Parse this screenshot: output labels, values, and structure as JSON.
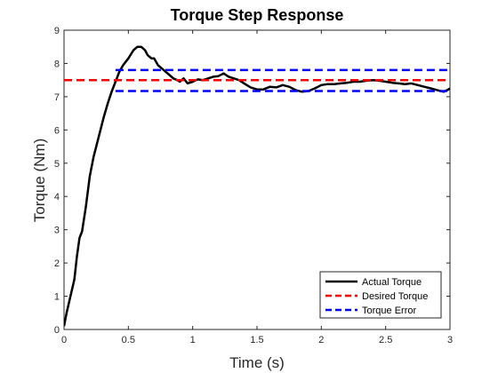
{
  "chart_data": {
    "type": "line",
    "title": "Torque Step Response",
    "xlabel": "Time (s)",
    "ylabel": "Torque (Nm)",
    "xlim": [
      0,
      3
    ],
    "ylim": [
      0,
      9
    ],
    "xticks": [
      0,
      0.5,
      1,
      1.5,
      2,
      2.5,
      3
    ],
    "xtick_labels": [
      "0",
      "0.5",
      "1",
      "1.5",
      "2",
      "2.5",
      "3"
    ],
    "yticks": [
      0,
      1,
      2,
      3,
      4,
      5,
      6,
      7,
      8,
      9
    ],
    "ytick_labels": [
      "0",
      "1",
      "2",
      "3",
      "4",
      "5",
      "6",
      "7",
      "8",
      "9"
    ],
    "grid": false,
    "legend_position": "bottom-right",
    "series": [
      {
        "name": "Actual Torque",
        "color": "#000000",
        "style": "solid",
        "x": [
          0,
          0.02,
          0.05,
          0.08,
          0.1,
          0.12,
          0.14,
          0.17,
          0.2,
          0.23,
          0.25,
          0.28,
          0.31,
          0.34,
          0.37,
          0.4,
          0.43,
          0.46,
          0.5,
          0.54,
          0.57,
          0.6,
          0.63,
          0.65,
          0.68,
          0.7,
          0.73,
          0.76,
          0.79,
          0.82,
          0.85,
          0.88,
          0.9,
          0.93,
          0.96,
          1.0,
          1.04,
          1.08,
          1.12,
          1.16,
          1.2,
          1.24,
          1.28,
          1.32,
          1.36,
          1.4,
          1.45,
          1.5,
          1.55,
          1.6,
          1.65,
          1.7,
          1.75,
          1.8,
          1.85,
          1.9,
          1.95,
          2.0,
          2.05,
          2.1,
          2.15,
          2.2,
          2.25,
          2.3,
          2.35,
          2.4,
          2.45,
          2.5,
          2.55,
          2.6,
          2.65,
          2.7,
          2.75,
          2.8,
          2.85,
          2.9,
          2.95,
          2.98,
          3.0
        ],
        "values": [
          0.1,
          0.5,
          1.0,
          1.5,
          2.2,
          2.75,
          2.95,
          3.7,
          4.6,
          5.2,
          5.5,
          5.95,
          6.4,
          6.8,
          7.15,
          7.45,
          7.75,
          7.95,
          8.15,
          8.4,
          8.5,
          8.5,
          8.4,
          8.25,
          8.15,
          8.15,
          7.95,
          7.85,
          7.75,
          7.65,
          7.55,
          7.5,
          7.45,
          7.55,
          7.4,
          7.45,
          7.52,
          7.5,
          7.55,
          7.6,
          7.62,
          7.7,
          7.6,
          7.55,
          7.5,
          7.4,
          7.28,
          7.22,
          7.22,
          7.3,
          7.28,
          7.35,
          7.3,
          7.2,
          7.15,
          7.17,
          7.25,
          7.35,
          7.38,
          7.38,
          7.4,
          7.42,
          7.45,
          7.45,
          7.48,
          7.5,
          7.48,
          7.45,
          7.42,
          7.4,
          7.38,
          7.4,
          7.35,
          7.3,
          7.25,
          7.2,
          7.15,
          7.2,
          7.25
        ]
      },
      {
        "name": "Desired Torque",
        "color": "#ff0000",
        "style": "dashed",
        "x": [
          0,
          3
        ],
        "values": [
          7.5,
          7.5
        ]
      },
      {
        "name": "Torque Error",
        "color": "#0000ff",
        "style": "dashed",
        "bands": [
          {
            "x": [
              0.4,
              3
            ],
            "values": [
              7.8,
              7.8
            ]
          },
          {
            "x": [
              0.4,
              3
            ],
            "values": [
              7.17,
              7.17
            ]
          }
        ]
      }
    ]
  }
}
